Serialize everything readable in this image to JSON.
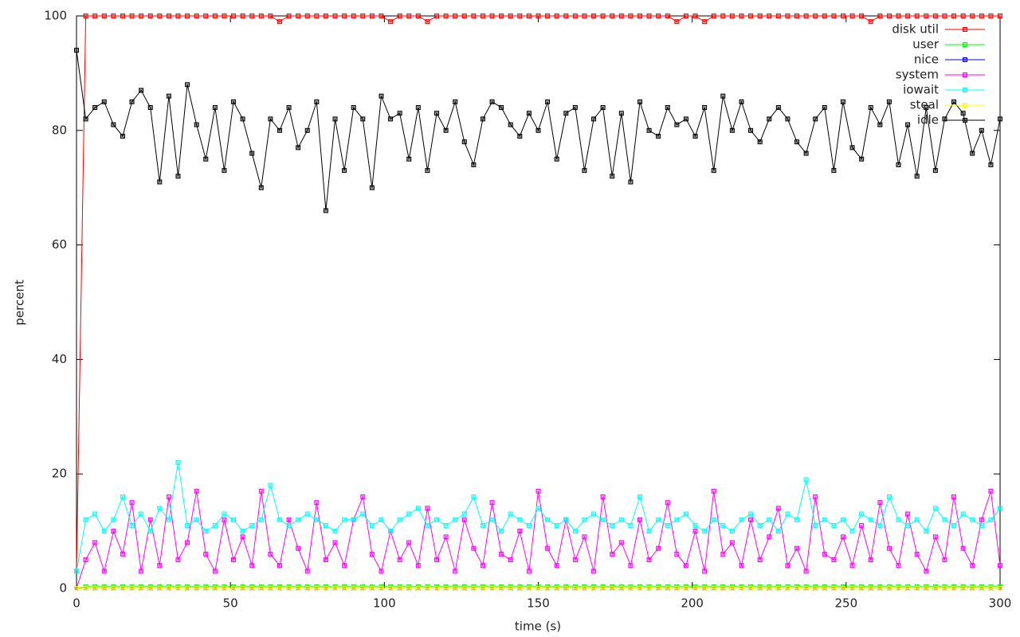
{
  "chart_data": {
    "type": "line",
    "xlabel": "time (s)",
    "ylabel": "percent",
    "xlim": [
      0,
      300
    ],
    "xticks": [
      0,
      50,
      100,
      150,
      200,
      250,
      300
    ],
    "ylim": [
      0,
      100
    ],
    "yticks": [
      0,
      20,
      40,
      60,
      80,
      100
    ],
    "legend": "top-right",
    "grid": false,
    "x": [
      0,
      3,
      6,
      9,
      12,
      15,
      18,
      21,
      24,
      27,
      30,
      33,
      36,
      39,
      42,
      45,
      48,
      51,
      54,
      57,
      60,
      63,
      66,
      69,
      72,
      75,
      78,
      81,
      84,
      87,
      90,
      93,
      96,
      99,
      102,
      105,
      108,
      111,
      114,
      117,
      120,
      123,
      126,
      129,
      132,
      135,
      138,
      141,
      144,
      147,
      150,
      153,
      156,
      159,
      162,
      165,
      168,
      171,
      174,
      177,
      180,
      183,
      186,
      189,
      192,
      195,
      198,
      201,
      204,
      207,
      210,
      213,
      216,
      219,
      222,
      225,
      228,
      231,
      234,
      237,
      240,
      243,
      246,
      249,
      252,
      255,
      258,
      261,
      264,
      267,
      270,
      273,
      276,
      279,
      282,
      285,
      288,
      291,
      294,
      297,
      300
    ],
    "series": [
      {
        "name": "disk util",
        "color": "#ff0000",
        "values": [
          3,
          100,
          100,
          100,
          100,
          100,
          100,
          100,
          100,
          100,
          100,
          100,
          100,
          100,
          100,
          100,
          100,
          100,
          100,
          100,
          100,
          100,
          99,
          100,
          100,
          100,
          100,
          100,
          100,
          100,
          100,
          100,
          100,
          100,
          99,
          100,
          100,
          100,
          99,
          100,
          100,
          100,
          100,
          100,
          100,
          100,
          100,
          100,
          100,
          100,
          100,
          100,
          100,
          100,
          100,
          100,
          100,
          100,
          100,
          100,
          100,
          100,
          100,
          100,
          100,
          99,
          100,
          100,
          99,
          100,
          100,
          100,
          100,
          100,
          100,
          100,
          100,
          100,
          100,
          100,
          100,
          100,
          100,
          100,
          100,
          100,
          99,
          100,
          100,
          100,
          100,
          100,
          100,
          100,
          100,
          100,
          100,
          100,
          100,
          100,
          100
        ]
      },
      {
        "name": "user",
        "color": "#00ff00",
        "values": [
          0,
          0.3,
          0.3,
          0.3,
          0.3,
          0.3,
          0.3,
          0.3,
          0.3,
          0.3,
          0.3,
          0.3,
          0.3,
          0.3,
          0.3,
          0.3,
          0.3,
          0.3,
          0.3,
          0.3,
          0.3,
          0.3,
          0.3,
          0.3,
          0.3,
          0.3,
          0.3,
          0.3,
          0.3,
          0.3,
          0.3,
          0.3,
          0.3,
          0.3,
          0.3,
          0.3,
          0.3,
          0.3,
          0.3,
          0.3,
          0.3,
          0.3,
          0.3,
          0.3,
          0.3,
          0.3,
          0.3,
          0.3,
          0.3,
          0.3,
          0.3,
          0.3,
          0.3,
          0.3,
          0.3,
          0.3,
          0.3,
          0.3,
          0.3,
          0.3,
          0.3,
          0.3,
          0.3,
          0.3,
          0.3,
          0.3,
          0.3,
          0.3,
          0.3,
          0.3,
          0.3,
          0.3,
          0.3,
          0.3,
          0.3,
          0.3,
          0.3,
          0.3,
          0.3,
          0.3,
          0.3,
          0.3,
          0.3,
          0.3,
          0.3,
          0.3,
          0.3,
          0.3,
          0.3,
          0.3,
          0.3,
          0.3,
          0.3,
          0.3,
          0.3,
          0.3,
          0.3,
          0.3,
          0.3,
          0.3,
          0.3
        ]
      },
      {
        "name": "nice",
        "color": "#0000ff",
        "values": [
          0,
          0,
          0,
          0,
          0,
          0,
          0,
          0,
          0,
          0,
          0,
          0,
          0,
          0,
          0,
          0,
          0,
          0,
          0,
          0,
          0,
          0,
          0,
          0,
          0,
          0,
          0,
          0,
          0,
          0,
          0,
          0,
          0,
          0,
          0,
          0,
          0,
          0,
          0,
          0,
          0,
          0,
          0,
          0,
          0,
          0,
          0,
          0,
          0,
          0,
          0,
          0,
          0,
          0,
          0,
          0,
          0,
          0,
          0,
          0,
          0,
          0,
          0,
          0,
          0,
          0,
          0,
          0,
          0,
          0,
          0,
          0,
          0,
          0,
          0,
          0,
          0,
          0,
          0,
          0,
          0,
          0,
          0,
          0,
          0,
          0,
          0,
          0,
          0,
          0,
          0,
          0,
          0,
          0,
          0,
          0,
          0,
          0,
          0,
          0,
          0
        ]
      },
      {
        "name": "system",
        "color": "#ff00ff",
        "values": [
          0,
          5,
          8,
          3,
          10,
          6,
          15,
          3,
          12,
          4,
          16,
          5,
          8,
          17,
          6,
          3,
          12,
          5,
          9,
          4,
          17,
          6,
          4,
          12,
          7,
          3,
          15,
          5,
          8,
          4,
          12,
          16,
          6,
          3,
          10,
          5,
          8,
          4,
          14,
          5,
          9,
          3,
          12,
          7,
          4,
          15,
          6,
          5,
          10,
          3,
          17,
          7,
          4,
          12,
          5,
          9,
          3,
          16,
          6,
          8,
          4,
          12,
          5,
          7,
          15,
          6,
          4,
          10,
          3,
          17,
          6,
          8,
          4,
          12,
          5,
          9,
          14,
          4,
          7,
          3,
          16,
          6,
          5,
          9,
          4,
          11,
          5,
          15,
          7,
          4,
          13,
          6,
          3,
          9,
          5,
          16,
          7,
          4,
          12,
          17,
          4
        ]
      },
      {
        "name": "iowait",
        "color": "#00ffff",
        "values": [
          3,
          12,
          13,
          10,
          12,
          16,
          11,
          13,
          10,
          14,
          12,
          22,
          11,
          12,
          10,
          11,
          13,
          12,
          10,
          11,
          12,
          18,
          12,
          11,
          12,
          13,
          12,
          11,
          10,
          12,
          12,
          13,
          11,
          12,
          10,
          12,
          13,
          14,
          11,
          12,
          11,
          12,
          13,
          16,
          11,
          12,
          10,
          13,
          12,
          11,
          14,
          12,
          11,
          12,
          10,
          12,
          13,
          12,
          11,
          12,
          11,
          16,
          10,
          12,
          11,
          12,
          13,
          11,
          10,
          12,
          11,
          10,
          12,
          13,
          11,
          12,
          10,
          13,
          12,
          19,
          11,
          12,
          11,
          12,
          10,
          13,
          12,
          11,
          16,
          12,
          11,
          12,
          10,
          14,
          12,
          11,
          13,
          12,
          11,
          12,
          14
        ]
      },
      {
        "name": "steal",
        "color": "#ffff00",
        "values": [
          0,
          0,
          0,
          0,
          0,
          0,
          0,
          0,
          0,
          0,
          0,
          0,
          0,
          0,
          0,
          0,
          0,
          0,
          0,
          0,
          0,
          0,
          0,
          0,
          0,
          0,
          0,
          0,
          0,
          0,
          0,
          0,
          0,
          0,
          0,
          0,
          0,
          0,
          0,
          0,
          0,
          0,
          0,
          0,
          0,
          0,
          0,
          0,
          0,
          0,
          0,
          0,
          0,
          0,
          0,
          0,
          0,
          0,
          0,
          0,
          0,
          0,
          0,
          0,
          0,
          0,
          0,
          0,
          0,
          0,
          0,
          0,
          0,
          0,
          0,
          0,
          0,
          0,
          0,
          0,
          0,
          0,
          0,
          0,
          0,
          0,
          0,
          0,
          0,
          0,
          0,
          0,
          0,
          0,
          0,
          0,
          0,
          0,
          0,
          0,
          0
        ]
      },
      {
        "name": "idle",
        "color": "#000000",
        "values": [
          94,
          82,
          84,
          85,
          81,
          79,
          85,
          87,
          84,
          71,
          86,
          72,
          88,
          81,
          75,
          84,
          73,
          85,
          82,
          76,
          70,
          82,
          80,
          84,
          77,
          80,
          85,
          66,
          82,
          73,
          84,
          82,
          70,
          86,
          82,
          83,
          75,
          84,
          73,
          83,
          80,
          85,
          78,
          74,
          82,
          85,
          84,
          81,
          79,
          83,
          80,
          85,
          75,
          83,
          84,
          73,
          82,
          84,
          72,
          83,
          71,
          85,
          80,
          79,
          84,
          81,
          82,
          79,
          84,
          73,
          86,
          80,
          85,
          80,
          78,
          82,
          84,
          82,
          78,
          76,
          82,
          84,
          73,
          85,
          77,
          75,
          84,
          81,
          85,
          74,
          81,
          72,
          84,
          73,
          82,
          85,
          83,
          76,
          80,
          74,
          82
        ]
      }
    ]
  }
}
